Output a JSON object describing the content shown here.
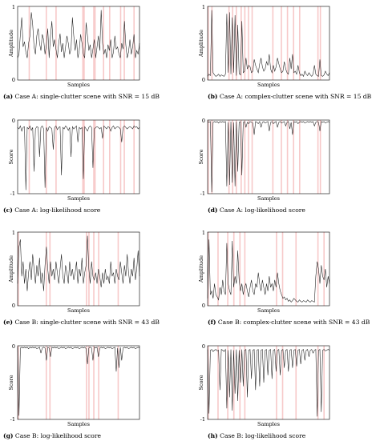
{
  "chart_data": [
    {
      "id": "a",
      "type": "line",
      "caption_tag": "(a)",
      "caption_text": "Case A: single-clutter scene with SNR = 15 dB",
      "xlabel": "Samples",
      "ylabel": "Amplitude",
      "ylim": [
        0,
        1
      ],
      "y_ticks": [
        "1",
        "0"
      ],
      "highlight_x": [
        0.09,
        0.23,
        0.31,
        0.53,
        0.54,
        0.62,
        0.63,
        0.7,
        0.75,
        0.84,
        0.87,
        0.95
      ],
      "series": [
        {
          "values": [
            0.3,
            0.35,
            0.62,
            0.85,
            0.45,
            0.52,
            0.38,
            0.3,
            0.5,
            0.6,
            0.92,
            0.75,
            0.45,
            0.35,
            0.6,
            0.7,
            0.5,
            0.4,
            0.62,
            0.55,
            0.35,
            0.48,
            0.7,
            0.3,
            0.6,
            0.8,
            0.45,
            0.55,
            0.42,
            0.3,
            0.5,
            0.63,
            0.38,
            0.5,
            0.3,
            0.45,
            0.6,
            0.5,
            0.35,
            0.42,
            0.85,
            0.6,
            0.4,
            0.55,
            0.3,
            0.4,
            0.62,
            0.5,
            0.35,
            0.3,
            0.78,
            0.6,
            0.4,
            0.48,
            0.3,
            0.42,
            0.55,
            0.3,
            0.45,
            0.6,
            0.4,
            0.95,
            0.5,
            0.35,
            0.42,
            0.3,
            0.48,
            0.4,
            0.55,
            0.3,
            0.38,
            0.6,
            0.42,
            0.45,
            0.35,
            0.3,
            0.5,
            0.42,
            0.8,
            0.48,
            0.3,
            0.38,
            0.55,
            0.35,
            0.45,
            0.62,
            0.3,
            0.4,
            0.35,
            0.5
          ]
        }
      ]
    },
    {
      "id": "b",
      "type": "line",
      "caption_tag": "(b)",
      "caption_text": "Case A: complex-clutter scene with SNR = 15 dB",
      "xlabel": "Samples",
      "ylabel": "Amplitude",
      "ylim": [
        0,
        1
      ],
      "y_ticks": [
        "1",
        "0"
      ],
      "highlight_x": [
        0.0,
        0.03,
        0.17,
        0.2,
        0.23,
        0.27,
        0.3,
        0.33,
        0.36,
        0.53,
        0.6,
        0.65,
        0.7,
        0.75,
        0.9,
        0.92
      ],
      "series": [
        {
          "values": [
            0.05,
            0.08,
            0.06,
            0.95,
            0.1,
            0.07,
            0.05,
            0.06,
            0.08,
            0.05,
            0.07,
            0.06,
            0.05,
            0.08,
            0.9,
            0.1,
            0.92,
            0.08,
            0.85,
            0.1,
            0.88,
            0.06,
            0.75,
            0.09,
            0.07,
            0.8,
            0.1,
            0.12,
            0.3,
            0.15,
            0.2,
            0.18,
            0.1,
            0.12,
            0.28,
            0.2,
            0.15,
            0.1,
            0.22,
            0.3,
            0.18,
            0.12,
            0.15,
            0.25,
            0.2,
            0.35,
            0.15,
            0.1,
            0.2,
            0.12,
            0.18,
            0.3,
            0.22,
            0.15,
            0.1,
            0.12,
            0.25,
            0.15,
            0.1,
            0.08,
            0.3,
            0.15,
            0.35,
            0.1,
            0.12,
            0.08,
            0.2,
            0.1,
            0.06,
            0.08,
            0.05,
            0.12,
            0.08,
            0.06,
            0.1,
            0.07,
            0.05,
            0.08,
            0.2,
            0.08,
            0.06,
            0.05,
            0.28,
            0.06,
            0.05,
            0.07,
            0.12,
            0.08,
            0.06,
            0.1
          ]
        }
      ]
    },
    {
      "id": "c",
      "type": "line",
      "caption_tag": "(c)",
      "caption_text": "Case A: log-likelihood score",
      "xlabel": "Samples",
      "ylabel": "Score",
      "ylim": [
        -1,
        0
      ],
      "y_ticks": [
        "0",
        "-1"
      ],
      "highlight_x": [
        0.09,
        0.23,
        0.31,
        0.53,
        0.54,
        0.62,
        0.63,
        0.7,
        0.75,
        0.84,
        0.87,
        0.95
      ],
      "series": [
        {
          "values": [
            -0.1,
            -0.12,
            -0.08,
            -0.15,
            -0.1,
            -0.09,
            -0.95,
            -0.1,
            -0.12,
            -0.08,
            -0.14,
            -0.1,
            -0.7,
            -0.12,
            -0.09,
            -0.1,
            -0.5,
            -0.1,
            -0.08,
            -0.12,
            -0.92,
            -0.1,
            -0.15,
            -0.09,
            -0.1,
            -0.12,
            -0.4,
            -0.1,
            -0.08,
            -0.13,
            -0.1,
            -0.09,
            -0.75,
            -0.1,
            -0.12,
            -0.08,
            -0.1,
            -0.14,
            -0.1,
            -0.5,
            -0.09,
            -0.12,
            -0.1,
            -0.08,
            -0.3,
            -0.1,
            -0.12,
            -0.1,
            -0.8,
            -0.09,
            -0.12,
            -0.15,
            -0.1,
            -0.08,
            -0.1,
            -0.65,
            -0.12,
            -0.1,
            -0.09,
            -0.1,
            -0.12,
            -0.1,
            -0.25,
            -0.08,
            -0.1,
            -0.12,
            -0.09,
            -0.1,
            -0.15,
            -0.1,
            -0.08,
            -0.12,
            -0.1,
            -0.09,
            -0.1,
            -0.12,
            -0.3,
            -0.1,
            -0.08,
            -0.1,
            -0.12,
            -0.1,
            -0.09,
            -0.1,
            -0.12,
            -0.08,
            -0.1,
            -0.09,
            -0.12,
            -0.1
          ]
        }
      ]
    },
    {
      "id": "d",
      "type": "line",
      "caption_tag": "(d)",
      "caption_text": "Case A: log-likelihood score",
      "xlabel": "Samples",
      "ylabel": "Score",
      "ylim": [
        -1,
        0
      ],
      "y_ticks": [
        "0",
        "-1"
      ],
      "highlight_x": [
        0.0,
        0.03,
        0.17,
        0.2,
        0.23,
        0.27,
        0.3,
        0.33,
        0.36,
        0.53,
        0.6,
        0.65,
        0.7,
        0.75,
        0.9,
        0.92
      ],
      "series": [
        {
          "values": [
            -0.02,
            -0.03,
            -0.02,
            -0.98,
            -0.03,
            -0.02,
            -0.03,
            -0.02,
            -0.04,
            -0.02,
            -0.03,
            -0.02,
            -0.03,
            -0.02,
            -0.9,
            -0.03,
            -0.88,
            -0.02,
            -0.85,
            -0.03,
            -0.9,
            -0.02,
            -0.7,
            -0.03,
            -0.02,
            -0.75,
            -0.03,
            -0.02,
            -0.1,
            -0.03,
            -0.05,
            -0.02,
            -0.03,
            -0.04,
            -0.2,
            -0.02,
            -0.03,
            -0.05,
            -0.02,
            -0.1,
            -0.03,
            -0.02,
            -0.04,
            -0.03,
            -0.02,
            -0.15,
            -0.03,
            -0.02,
            -0.05,
            -0.03,
            -0.02,
            -0.1,
            -0.03,
            -0.02,
            -0.04,
            -0.03,
            -0.02,
            -0.08,
            -0.03,
            -0.02,
            -0.12,
            -0.03,
            -0.2,
            -0.02,
            -0.03,
            -0.02,
            -0.05,
            -0.03,
            -0.02,
            -0.03,
            -0.02,
            -0.04,
            -0.03,
            -0.02,
            -0.03,
            -0.02,
            -0.03,
            -0.02,
            -0.08,
            -0.03,
            -0.02,
            -0.03,
            -0.15,
            -0.02,
            -0.03,
            -0.02,
            -0.04,
            -0.03,
            -0.02,
            -0.03
          ]
        }
      ]
    },
    {
      "id": "e",
      "type": "line",
      "caption_tag": "(e)",
      "caption_text": "Case B: single-clutter scene with SNR = 43 dB",
      "xlabel": "Samples",
      "ylabel": "Amplitude",
      "ylim": [
        0,
        1
      ],
      "y_ticks": [
        "1",
        "0"
      ],
      "highlight_x": [
        0.0,
        0.23,
        0.26,
        0.56,
        0.58,
        0.62,
        0.66,
        0.82
      ],
      "series": [
        {
          "values": [
            0.3,
            0.8,
            0.9,
            0.4,
            0.6,
            0.3,
            0.5,
            0.2,
            0.45,
            0.6,
            0.35,
            0.7,
            0.5,
            0.3,
            0.55,
            0.4,
            0.65,
            0.3,
            0.45,
            0.2,
            0.55,
            0.8,
            0.5,
            0.3,
            0.6,
            0.4,
            0.5,
            0.35,
            0.6,
            0.45,
            0.3,
            0.5,
            0.7,
            0.4,
            0.3,
            0.55,
            0.45,
            0.3,
            0.6,
            0.4,
            0.5,
            0.35,
            0.45,
            0.6,
            0.3,
            0.5,
            0.4,
            0.65,
            0.3,
            0.45,
            0.55,
            0.95,
            0.5,
            0.3,
            0.6,
            0.4,
            0.35,
            0.45,
            0.3,
            0.5,
            0.4,
            0.25,
            0.45,
            0.3,
            0.5,
            0.35,
            0.4,
            0.3,
            0.6,
            0.4,
            0.45,
            0.3,
            0.5,
            0.4,
            0.35,
            0.6,
            0.45,
            0.3,
            0.55,
            0.4,
            0.7,
            0.45,
            0.3,
            0.5,
            0.4,
            0.65,
            0.35,
            0.5,
            0.75,
            0.4
          ]
        }
      ]
    },
    {
      "id": "f",
      "type": "line",
      "caption_tag": "(f)",
      "caption_text": "Case B: complex-clutter scene with SNR = 43 dB",
      "xlabel": "Samples",
      "ylabel": "Amplitude",
      "ylim": [
        0,
        1
      ],
      "y_ticks": [
        "1",
        "0"
      ],
      "highlight_x": [
        0.0,
        0.08,
        0.16,
        0.21,
        0.26,
        0.3,
        0.56,
        0.61,
        0.72,
        0.9,
        0.95
      ],
      "series": [
        {
          "values": [
            0.1,
            0.9,
            0.15,
            0.2,
            0.1,
            0.3,
            0.15,
            0.12,
            0.08,
            0.25,
            0.15,
            0.35,
            0.2,
            0.15,
            0.85,
            0.3,
            0.2,
            0.15,
            0.88,
            0.25,
            0.4,
            0.3,
            0.75,
            0.35,
            0.2,
            0.3,
            0.15,
            0.25,
            0.3,
            0.2,
            0.12,
            0.25,
            0.35,
            0.2,
            0.15,
            0.3,
            0.25,
            0.45,
            0.3,
            0.2,
            0.35,
            0.25,
            0.15,
            0.3,
            0.2,
            0.4,
            0.25,
            0.3,
            0.2,
            0.35,
            0.25,
            0.45,
            0.3,
            0.2,
            0.15,
            0.1,
            0.12,
            0.08,
            0.1,
            0.06,
            0.08,
            0.05,
            0.07,
            0.1,
            0.08,
            0.06,
            0.05,
            0.08,
            0.06,
            0.05,
            0.07,
            0.06,
            0.05,
            0.08,
            0.06,
            0.05,
            0.07,
            0.06,
            0.05,
            0.4,
            0.6,
            0.5,
            0.3,
            0.55,
            0.4,
            0.35,
            0.5,
            0.25,
            0.4,
            0.3
          ]
        }
      ]
    },
    {
      "id": "g",
      "type": "line",
      "caption_tag": "(g)",
      "caption_text": "Case B: log-likelihood score",
      "xlabel": "Samples",
      "ylabel": "Score",
      "ylim": [
        -1,
        0
      ],
      "y_ticks": [
        "0",
        "-1"
      ],
      "highlight_x": [
        0.0,
        0.23,
        0.26,
        0.56,
        0.58,
        0.62,
        0.66,
        0.82
      ],
      "series": [
        {
          "values": [
            -0.02,
            -0.95,
            -0.03,
            -0.02,
            -0.03,
            -0.02,
            -0.03,
            -0.02,
            -0.04,
            -0.02,
            -0.03,
            -0.02,
            -0.03,
            -0.02,
            -0.04,
            -0.03,
            -0.02,
            -0.1,
            -0.03,
            -0.02,
            -0.03,
            -0.2,
            -0.02,
            -0.03,
            -0.15,
            -0.02,
            -0.03,
            -0.02,
            -0.03,
            -0.02,
            -0.04,
            -0.03,
            -0.02,
            -0.03,
            -0.02,
            -0.04,
            -0.03,
            -0.02,
            -0.03,
            -0.02,
            -0.04,
            -0.03,
            -0.02,
            -0.03,
            -0.02,
            -0.04,
            -0.03,
            -0.02,
            -0.03,
            -0.02,
            -0.04,
            -0.25,
            -0.03,
            -0.02,
            -0.03,
            -0.2,
            -0.02,
            -0.03,
            -0.02,
            -0.15,
            -0.03,
            -0.02,
            -0.03,
            -0.02,
            -0.04,
            -0.03,
            -0.02,
            -0.03,
            -0.02,
            -0.04,
            -0.03,
            -0.02,
            -0.35,
            -0.03,
            -0.3,
            -0.02,
            -0.2,
            -0.03,
            -0.02,
            -0.03,
            -0.02,
            -0.04,
            -0.03,
            -0.02,
            -0.03,
            -0.02,
            -0.04,
            -0.03,
            -0.02,
            -0.03
          ]
        }
      ]
    },
    {
      "id": "h",
      "type": "line",
      "caption_tag": "(h)",
      "caption_text": "Case B: log-likelihood score",
      "xlabel": "Samples",
      "ylabel": "Score",
      "ylim": [
        -1,
        0
      ],
      "y_ticks": [
        "0",
        "-1"
      ],
      "highlight_x": [
        0.0,
        0.08,
        0.16,
        0.21,
        0.26,
        0.3,
        0.56,
        0.61,
        0.72,
        0.9,
        0.95
      ],
      "series": [
        {
          "values": [
            -0.05,
            -0.92,
            -0.06,
            -0.05,
            -0.08,
            -0.06,
            -0.05,
            -0.07,
            -0.06,
            -0.6,
            -0.05,
            -0.06,
            -0.08,
            -0.05,
            -0.85,
            -0.06,
            -0.7,
            -0.05,
            -0.88,
            -0.06,
            -0.65,
            -0.05,
            -0.75,
            -0.06,
            -0.5,
            -0.05,
            -0.55,
            -0.06,
            -0.05,
            -0.7,
            -0.06,
            -0.05,
            -0.45,
            -0.06,
            -0.05,
            -0.6,
            -0.06,
            -0.05,
            -0.55,
            -0.06,
            -0.05,
            -0.5,
            -0.06,
            -0.05,
            -0.4,
            -0.06,
            -0.05,
            -0.45,
            -0.06,
            -0.05,
            -0.35,
            -0.06,
            -0.05,
            -0.4,
            -0.06,
            -0.05,
            -0.3,
            -0.06,
            -0.05,
            -0.35,
            -0.06,
            -0.05,
            -0.3,
            -0.06,
            -0.05,
            -0.28,
            -0.06,
            -0.05,
            -0.25,
            -0.06,
            -0.05,
            -0.2,
            -0.06,
            -0.05,
            -0.15,
            -0.06,
            -0.05,
            -0.1,
            -0.06,
            -0.05,
            -0.96,
            -0.06,
            -0.05,
            -0.9,
            -0.06,
            -0.05,
            -0.07,
            -0.06,
            -0.05,
            -0.06
          ]
        }
      ]
    }
  ],
  "colors": {
    "highlight": "#f7c9c9",
    "signal": "#1a1a1a",
    "spike_overlay": "#c62828"
  }
}
